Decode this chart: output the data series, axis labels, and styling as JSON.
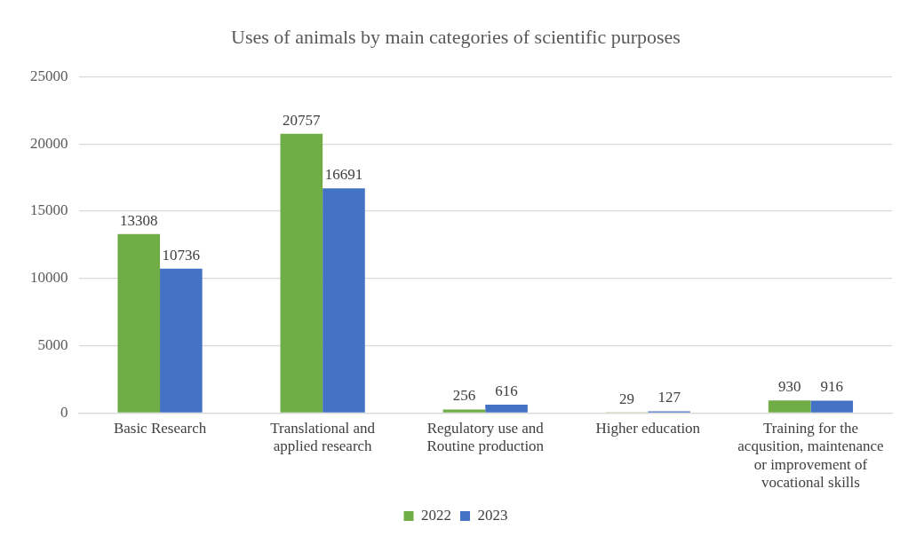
{
  "chart_data": {
    "type": "bar",
    "title": "Uses of animals by main categories of scientific purposes",
    "categories": [
      "Basic Research",
      "Translational and applied research",
      "Regulatory use and Routine production",
      "Higher education",
      "Training for the acqusition, maintenance or improvement of vocational skills"
    ],
    "series": [
      {
        "name": "2022",
        "color": "#70ad47",
        "values": [
          13308,
          20757,
          256,
          29,
          930
        ]
      },
      {
        "name": "2023",
        "color": "#4472c4",
        "values": [
          10736,
          16691,
          616,
          127,
          916
        ]
      }
    ],
    "ylim": [
      0,
      25000
    ],
    "yticks": [
      0,
      5000,
      10000,
      15000,
      20000,
      25000
    ],
    "grid": "y",
    "legend": "bottom",
    "data_labels": true
  }
}
